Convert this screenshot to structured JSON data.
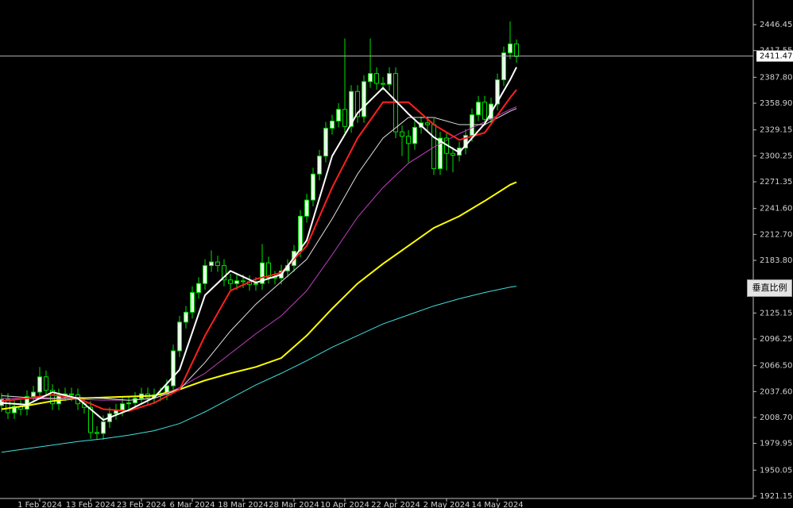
{
  "chart_data": {
    "type": "candlestick",
    "categories": [
      null,
      null,
      null,
      null,
      null,
      null,
      "1 Feb 2024",
      null,
      null,
      null,
      null,
      null,
      null,
      null,
      "13 Feb 2024",
      null,
      null,
      null,
      null,
      null,
      null,
      null,
      "23 Feb 2024",
      null,
      null,
      null,
      null,
      null,
      null,
      null,
      "6 Mar 2024",
      null,
      null,
      null,
      null,
      null,
      null,
      null,
      "18 Mar 2024",
      null,
      null,
      null,
      null,
      null,
      null,
      null,
      "28 Mar 2024",
      null,
      null,
      null,
      null,
      null,
      null,
      null,
      "10 Apr 2024",
      null,
      null,
      null,
      null,
      null,
      null,
      null,
      "22 Apr 2024",
      null,
      null,
      null,
      null,
      null,
      null,
      null,
      "2 May 2024",
      null,
      null,
      null,
      null,
      null,
      null,
      null,
      "14 May 2024",
      null,
      null,
      null
    ],
    "open": [
      2022,
      2029,
      2014,
      2021,
      2018,
      2032,
      2037,
      2054,
      2039,
      2024,
      2034,
      2035,
      2034,
      2024,
      2020,
      1992,
      1991,
      2004,
      2013,
      2017,
      2024,
      2025,
      2030,
      2035,
      2031,
      2034,
      2035,
      2044,
      2083,
      2115,
      2126,
      2148,
      2158,
      2178,
      2182,
      2178,
      2162,
      2158,
      2161,
      2160,
      2157,
      2158,
      2181,
      2165,
      2164,
      2172,
      2178,
      2194,
      2233,
      2251,
      2280,
      2300,
      2331,
      2339,
      2352,
      2333,
      2372,
      2344,
      2383,
      2392,
      2381,
      2380,
      2392,
      2327,
      2322,
      2314,
      2332,
      2337,
      2335,
      2286,
      2320,
      2303,
      2301,
      2309,
      2323,
      2346,
      2360,
      2341,
      2358,
      2385,
      2415,
      2425
    ],
    "high": [
      2036,
      2036,
      2028,
      2028,
      2039,
      2044,
      2065,
      2061,
      2046,
      2041,
      2042,
      2042,
      2041,
      2031,
      2027,
      1999,
      2011,
      2020,
      2024,
      2031,
      2032,
      2037,
      2042,
      2042,
      2041,
      2042,
      2051,
      2090,
      2122,
      2133,
      2155,
      2165,
      2185,
      2195,
      2189,
      2185,
      2169,
      2168,
      2168,
      2167,
      2165,
      2202,
      2188,
      2172,
      2179,
      2185,
      2201,
      2240,
      2258,
      2287,
      2307,
      2338,
      2346,
      2359,
      2431,
      2379,
      2379,
      2390,
      2431,
      2399,
      2388,
      2399,
      2399,
      2334,
      2329,
      2339,
      2344,
      2344,
      2342,
      2327,
      2327,
      2310,
      2316,
      2330,
      2353,
      2367,
      2367,
      2365,
      2392,
      2422,
      2450,
      2430
    ],
    "low": [
      2015,
      2007,
      2007,
      2011,
      2011,
      2025,
      2030,
      2032,
      2017,
      2017,
      2027,
      2027,
      2017,
      2013,
      1985,
      1984,
      1984,
      1997,
      2006,
      2010,
      2017,
      2018,
      2023,
      2024,
      2024,
      2027,
      2028,
      2037,
      2076,
      2108,
      2119,
      2141,
      2151,
      2171,
      2171,
      2155,
      2151,
      2151,
      2153,
      2150,
      2150,
      2151,
      2158,
      2157,
      2157,
      2165,
      2171,
      2187,
      2226,
      2244,
      2273,
      2293,
      2324,
      2332,
      2326,
      2326,
      2337,
      2337,
      2376,
      2374,
      2373,
      2373,
      2320,
      2300,
      2293,
      2307,
      2325,
      2328,
      2279,
      2279,
      2284,
      2282,
      2294,
      2302,
      2316,
      2339,
      2334,
      2334,
      2351,
      2378,
      2408,
      2404
    ],
    "close": [
      2029,
      2014,
      2021,
      2018,
      2032,
      2037,
      2054,
      2039,
      2024,
      2034,
      2035,
      2034,
      2024,
      2020,
      1992,
      1991,
      2004,
      2013,
      2017,
      2024,
      2025,
      2030,
      2035,
      2031,
      2034,
      2035,
      2044,
      2083,
      2115,
      2126,
      2148,
      2158,
      2178,
      2182,
      2178,
      2162,
      2158,
      2161,
      2160,
      2157,
      2158,
      2181,
      2165,
      2164,
      2172,
      2178,
      2194,
      2233,
      2251,
      2280,
      2300,
      2331,
      2339,
      2352,
      2333,
      2372,
      2344,
      2383,
      2392,
      2381,
      2380,
      2392,
      2327,
      2322,
      2314,
      2332,
      2337,
      2335,
      2286,
      2320,
      2303,
      2301,
      2309,
      2323,
      2346,
      2360,
      2341,
      2358,
      2385,
      2415,
      2425,
      2411
    ],
    "up_color": "#e8ffe8",
    "down_color": "#000000",
    "wick_color": "#00e000",
    "series": [
      {
        "color": "#40e0e0",
        "width": 1,
        "x": [
          0,
          4,
          8,
          12,
          16,
          20,
          24,
          28,
          32,
          36,
          40,
          44,
          48,
          52,
          56,
          60,
          64,
          68,
          72,
          76,
          80,
          81
        ],
        "values": [
          1970,
          1974,
          1978,
          1982,
          1985,
          1989,
          1994,
          2002,
          2015,
          2030,
          2045,
          2058,
          2072,
          2087,
          2100,
          2113,
          2123,
          2133,
          2141,
          2148,
          2154,
          2155
        ]
      },
      {
        "color": "#ffff00",
        "width": 2,
        "x": [
          0,
          4,
          8,
          12,
          16,
          20,
          24,
          28,
          32,
          36,
          40,
          44,
          48,
          52,
          56,
          60,
          64,
          68,
          72,
          76,
          80,
          81
        ],
        "values": [
          2018,
          2022,
          2027,
          2030,
          2031,
          2032,
          2033,
          2040,
          2050,
          2058,
          2065,
          2075,
          2100,
          2130,
          2158,
          2180,
          2200,
          2220,
          2233,
          2250,
          2268,
          2271
        ]
      },
      {
        "color": "#c040c0",
        "width": 1,
        "x": [
          0,
          4,
          8,
          12,
          16,
          20,
          24,
          28,
          32,
          36,
          40,
          44,
          48,
          52,
          56,
          60,
          64,
          68,
          72,
          76,
          80,
          81
        ],
        "values": [
          2030,
          2030,
          2029,
          2029,
          2028,
          2028,
          2030,
          2042,
          2058,
          2080,
          2102,
          2122,
          2150,
          2190,
          2232,
          2265,
          2292,
          2310,
          2325,
          2338,
          2352,
          2355
        ]
      },
      {
        "color": "#e0e0e0",
        "width": 1,
        "x": [
          0,
          4,
          8,
          12,
          16,
          20,
          24,
          28,
          32,
          36,
          40,
          44,
          48,
          52,
          56,
          60,
          64,
          68,
          72,
          76,
          80,
          81
        ],
        "values": [
          2033,
          2031,
          2030,
          2031,
          2030,
          2028,
          2030,
          2040,
          2070,
          2105,
          2135,
          2160,
          2185,
          2230,
          2280,
          2320,
          2343,
          2343,
          2335,
          2335,
          2350,
          2353
        ]
      },
      {
        "color": "#ff2020",
        "width": 2,
        "x": [
          0,
          4,
          8,
          12,
          16,
          20,
          24,
          28,
          32,
          36,
          40,
          44,
          48,
          52,
          56,
          60,
          64,
          68,
          72,
          76,
          80,
          81
        ],
        "values": [
          2027,
          2030,
          2034,
          2030,
          2018,
          2016,
          2025,
          2040,
          2100,
          2150,
          2163,
          2170,
          2200,
          2265,
          2320,
          2360,
          2360,
          2335,
          2318,
          2326,
          2365,
          2374
        ]
      },
      {
        "color": "#ffffff",
        "width": 2,
        "x": [
          0,
          4,
          8,
          12,
          16,
          20,
          24,
          28,
          32,
          36,
          40,
          44,
          48,
          52,
          56,
          60,
          64,
          68,
          72,
          76,
          80,
          81
        ],
        "values": [
          2025,
          2023,
          2037,
          2030,
          2006,
          2017,
          2031,
          2062,
          2145,
          2172,
          2159,
          2168,
          2206,
          2300,
          2348,
          2376,
          2347,
          2321,
          2304,
          2336,
          2385,
          2399
        ]
      }
    ],
    "ylim": [
      1918.5,
      2473.9
    ],
    "yticks": [
      {
        "value": 1921.15,
        "label": "1921.15"
      },
      1950.05,
      1979.95,
      {
        "value": 2008.7,
        "label": "2008.70"
      },
      {
        "value": 2037.6,
        "label": "2037.60"
      },
      {
        "value": 2066.5,
        "label": "2066.50"
      },
      2096.25,
      2125.15,
      {
        "value": 2183.8,
        "label": "2183.80"
      },
      {
        "value": 2212.7,
        "label": "2212.70"
      },
      {
        "value": 2241.6,
        "label": "2241.60"
      },
      2271.35,
      2300.25,
      2329.15,
      {
        "value": 2358.9,
        "label": "2358.90"
      },
      {
        "value": 2387.8,
        "label": "2387.80"
      },
      2417.55,
      2446.45
    ],
    "current_price": 2411.47
  },
  "scale_button": "垂直比例"
}
